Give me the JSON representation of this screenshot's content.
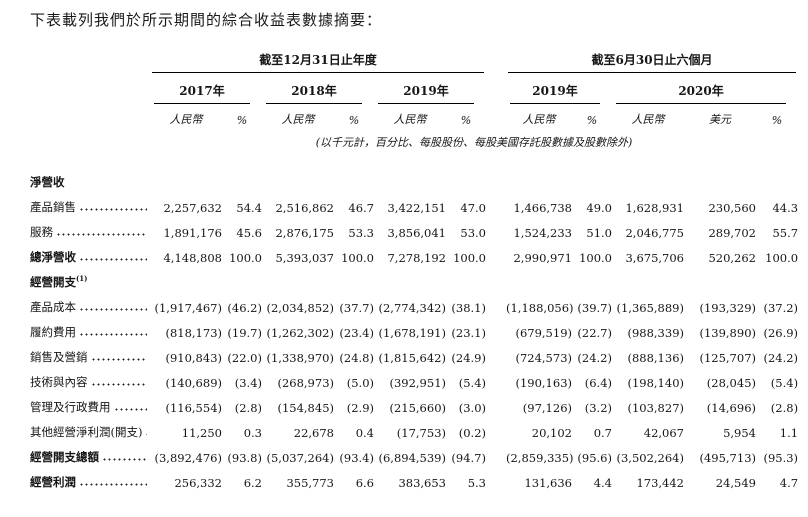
{
  "page": {
    "title": "下表載列我們於所示期間的綜合收益表數據摘要："
  },
  "table": {
    "groups": [
      {
        "label": "截至12月31日止年度"
      },
      {
        "label": "截至6月30日止六個月"
      }
    ],
    "years": [
      {
        "label": "2017年",
        "cols": [
          "人民幣",
          "%"
        ]
      },
      {
        "label": "2018年",
        "cols": [
          "人民幣",
          "%"
        ]
      },
      {
        "label": "2019年",
        "cols": [
          "人民幣",
          "%"
        ]
      },
      {
        "label": "2019年",
        "cols": [
          "人民幣",
          "%"
        ]
      },
      {
        "label": "2020年",
        "cols": [
          "人民幣",
          "美元",
          "%"
        ]
      }
    ],
    "unit_note": "(以千元計，百分比、每股股份、每股美國存託股數據及股數除外)",
    "rows": [
      {
        "label": "淨營收",
        "bold": true,
        "section": true
      },
      {
        "label": "產品銷售",
        "values": [
          "2,257,632",
          "54.4",
          "2,516,862",
          "46.7",
          "3,422,151",
          "47.0",
          "1,466,738",
          "49.0",
          "1,628,931",
          "230,560",
          "44.3"
        ]
      },
      {
        "label": "服務",
        "values": [
          "1,891,176",
          "45.6",
          "2,876,175",
          "53.3",
          "3,856,041",
          "53.0",
          "1,524,233",
          "51.0",
          "2,046,775",
          "289,702",
          "55.7"
        ]
      },
      {
        "label": "總淨營收",
        "bold": true,
        "values": [
          "4,148,808",
          "100.0",
          "5,393,037",
          "100.0",
          "7,278,192",
          "100.0",
          "2,990,971",
          "100.0",
          "3,675,706",
          "520,262",
          "100.0"
        ]
      },
      {
        "label": "經營開支",
        "sup": "(1)",
        "bold": true,
        "section": true
      },
      {
        "label": "產品成本",
        "values": [
          "(1,917,467)",
          "(46.2)",
          "(2,034,852)",
          "(37.7)",
          "(2,774,342)",
          "(38.1)",
          "(1,188,056)",
          "(39.7)",
          "(1,365,889)",
          "(193,329)",
          "(37.2)"
        ]
      },
      {
        "label": "履約費用",
        "values": [
          "(818,173)",
          "(19.7)",
          "(1,262,302)",
          "(23.4)",
          "(1,678,191)",
          "(23.1)",
          "(679,519)",
          "(22.7)",
          "(988,339)",
          "(139,890)",
          "(26.9)"
        ]
      },
      {
        "label": "銷售及營銷",
        "values": [
          "(910,843)",
          "(22.0)",
          "(1,338,970)",
          "(24.8)",
          "(1,815,642)",
          "(24.9)",
          "(724,573)",
          "(24.2)",
          "(888,136)",
          "(125,707)",
          "(24.2)"
        ]
      },
      {
        "label": "技術與內容",
        "values": [
          "(140,689)",
          "(3.4)",
          "(268,973)",
          "(5.0)",
          "(392,951)",
          "(5.4)",
          "(190,163)",
          "(6.4)",
          "(198,140)",
          "(28,045)",
          "(5.4)"
        ]
      },
      {
        "label": "管理及行政費用",
        "values": [
          "(116,554)",
          "(2.8)",
          "(154,845)",
          "(2.9)",
          "(215,660)",
          "(3.0)",
          "(97,126)",
          "(3.2)",
          "(103,827)",
          "(14,696)",
          "(2.8)"
        ]
      },
      {
        "label": "其他經營淨利潤(開支)",
        "values": [
          "11,250",
          "0.3",
          "22,678",
          "0.4",
          "(17,753)",
          "(0.2)",
          "20,102",
          "0.7",
          "42,067",
          "5,954",
          "1.1"
        ]
      },
      {
        "label": "經營開支總額",
        "bold": true,
        "values": [
          "(3,892,476)",
          "(93.8)",
          "(5,037,264)",
          "(93.4)",
          "(6,894,539)",
          "(94.7)",
          "(2,859,335)",
          "(95.6)",
          "(3,502,264)",
          "(495,713)",
          "(95.3)"
        ]
      },
      {
        "label": "經營利潤",
        "bold": true,
        "values": [
          "256,332",
          "6.2",
          "355,773",
          "6.6",
          "383,653",
          "5.3",
          "131,636",
          "4.4",
          "173,442",
          "24,549",
          "4.7"
        ]
      }
    ]
  }
}
